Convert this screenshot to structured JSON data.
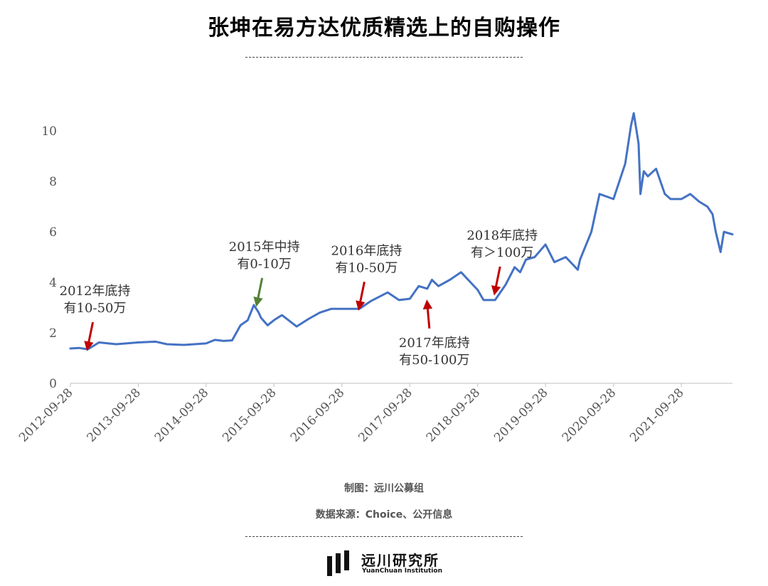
{
  "header": {
    "title": "张坤在易方达优质精选上的自购操作"
  },
  "footer": {
    "credit": "制图：远川公募组",
    "source": "数据来源：Choice、公开信息",
    "logo_cn": "远川研究所",
    "logo_en": "YuanChuan Institution"
  },
  "colors": {
    "line": "#4472C4",
    "arrow_red": "#C00000",
    "arrow_green": "#548235"
  },
  "chart_data": {
    "type": "line",
    "title": "张坤在易方达优质精选上的自购操作",
    "xlabel": "",
    "ylabel": "",
    "ylim": [
      0,
      12
    ],
    "yticks": [
      "0",
      "2",
      "4",
      "6",
      "8",
      "10"
    ],
    "xlim": [
      "2012-09-28",
      "2022-06-30"
    ],
    "xticks": [
      "2012-09-28",
      "2013-09-28",
      "2014-09-28",
      "2015-09-28",
      "2016-09-28",
      "2017-09-28",
      "2018-09-28",
      "2019-09-28",
      "2020-09-28",
      "2021-09-28"
    ],
    "grid": false,
    "legend": "none",
    "series": [
      {
        "x": [
          "2012-09-28",
          "2012-11-15",
          "2012-12-31",
          "2013-03-01",
          "2013-06-01",
          "2013-09-28",
          "2013-12-31",
          "2014-03-01",
          "2014-06-01",
          "2014-09-28",
          "2014-11-15",
          "2014-12-31",
          "2015-02-15",
          "2015-04-01",
          "2015-05-10",
          "2015-06-12",
          "2015-07-08",
          "2015-07-20",
          "2015-08-25",
          "2015-09-28",
          "2015-11-10",
          "2016-01-28",
          "2016-04-01",
          "2016-06-01",
          "2016-08-01",
          "2016-09-28",
          "2016-12-31",
          "2017-03-01",
          "2017-06-01",
          "2017-08-01",
          "2017-09-28",
          "2017-11-15",
          "2017-12-31",
          "2018-01-25",
          "2018-03-01",
          "2018-05-01",
          "2018-07-01",
          "2018-09-28",
          "2018-10-30",
          "2018-12-31",
          "2019-02-25",
          "2019-04-15",
          "2019-05-15",
          "2019-06-15",
          "2019-08-01",
          "2019-09-28",
          "2019-11-15",
          "2020-01-15",
          "2020-03-20",
          "2020-04-01",
          "2020-06-01",
          "2020-07-15",
          "2020-09-28",
          "2020-11-30",
          "2020-12-31",
          "2021-01-15",
          "2021-02-10",
          "2021-02-20",
          "2021-03-10",
          "2021-04-01",
          "2021-05-15",
          "2021-07-01",
          "2021-08-01",
          "2021-09-28",
          "2021-11-15",
          "2022-01-01",
          "2022-02-15",
          "2022-03-15",
          "2022-04-01",
          "2022-04-27",
          "2022-05-15",
          "2022-06-30"
        ],
        "y": [
          1.38,
          1.4,
          1.35,
          1.62,
          1.55,
          1.62,
          1.65,
          1.55,
          1.52,
          1.58,
          1.72,
          1.68,
          1.7,
          2.3,
          2.5,
          3.1,
          2.8,
          2.6,
          2.3,
          2.5,
          2.7,
          2.25,
          2.55,
          2.8,
          2.95,
          2.95,
          2.95,
          3.25,
          3.6,
          3.3,
          3.35,
          3.85,
          3.75,
          4.1,
          3.85,
          4.1,
          4.4,
          3.7,
          3.3,
          3.3,
          3.9,
          4.6,
          4.4,
          4.9,
          5.0,
          5.5,
          4.8,
          5.0,
          4.5,
          4.9,
          6.0,
          7.5,
          7.3,
          8.7,
          10.2,
          10.7,
          9.5,
          7.5,
          8.4,
          8.2,
          8.5,
          7.5,
          7.3,
          7.3,
          7.5,
          7.2,
          7.0,
          6.7,
          6.0,
          5.2,
          6.0,
          5.9
        ]
      }
    ],
    "annotations": [
      {
        "lines": [
          "2012年底持",
          "有10-50万"
        ],
        "date": "2012-12-31",
        "y": 1.35,
        "color": "red",
        "direction": "down"
      },
      {
        "lines": [
          "2015年中持",
          "有0-10万"
        ],
        "date": "2015-06-30",
        "y": 3.1,
        "color": "green",
        "direction": "down"
      },
      {
        "lines": [
          "2016年底持",
          "有10-50万"
        ],
        "date": "2016-12-31",
        "y": 2.95,
        "color": "red",
        "direction": "down"
      },
      {
        "lines": [
          "2017年底持",
          "有50-100万"
        ],
        "date": "2017-12-31",
        "y": 3.3,
        "color": "red",
        "direction": "up"
      },
      {
        "lines": [
          "2018年底持",
          "有＞100万"
        ],
        "date": "2018-12-31",
        "y": 3.55,
        "color": "red",
        "direction": "down"
      }
    ]
  }
}
